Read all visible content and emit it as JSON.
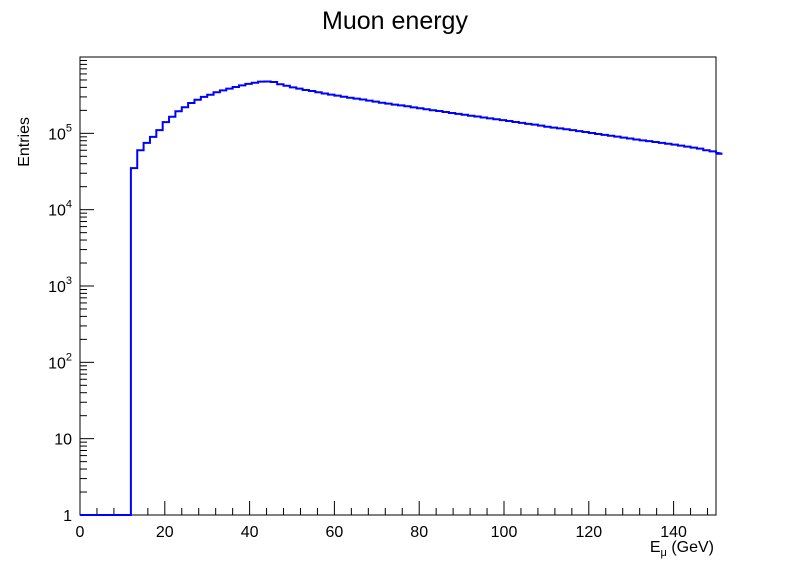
{
  "chart_data": {
    "type": "histogram",
    "title": "Muon energy",
    "xlabel": "E",
    "xlabel_subscript": "μ",
    "xlabel_unit": " (GeV)",
    "ylabel": "Entries",
    "xlim": [
      0,
      150
    ],
    "ylim": [
      1,
      1000000
    ],
    "y_scale": "log",
    "grid": false,
    "legend": "none",
    "line_color": "#0000ff",
    "x_ticks": [
      0,
      20,
      40,
      60,
      80,
      100,
      120,
      140
    ],
    "x_tick_labels": [
      "0",
      "20",
      "40",
      "60",
      "80",
      "100",
      "120",
      "140"
    ],
    "y_ticks": [
      1,
      10,
      100,
      1000,
      10000,
      100000
    ],
    "y_tick_labels": [
      {
        "base": "1",
        "exp": ""
      },
      {
        "base": "10",
        "exp": ""
      },
      {
        "base": "10",
        "exp": "2"
      },
      {
        "base": "10",
        "exp": "3"
      },
      {
        "base": "10",
        "exp": "4"
      },
      {
        "base": "10",
        "exp": "5"
      }
    ],
    "bin_width": 1.5,
    "bin_edges_start": 0,
    "values": [
      1,
      1,
      1,
      1,
      1,
      1,
      1,
      1,
      35000,
      60000,
      75000,
      90000,
      110000,
      140000,
      165000,
      195000,
      220000,
      250000,
      275000,
      300000,
      320000,
      345000,
      365000,
      385000,
      405000,
      425000,
      445000,
      460000,
      475000,
      478000,
      470000,
      440000,
      420000,
      400000,
      385000,
      370000,
      358000,
      345000,
      333000,
      322000,
      312000,
      302000,
      293000,
      285000,
      277000,
      268000,
      260000,
      252000,
      245000,
      238000,
      232000,
      226000,
      219000,
      213000,
      207000,
      201000,
      196000,
      190000,
      185000,
      180000,
      175000,
      170000,
      166000,
      161000,
      157000,
      153000,
      149000,
      145000,
      141000,
      137000,
      133000,
      130000,
      126000,
      122000,
      119000,
      116000,
      113000,
      110000,
      107000,
      104000,
      101000,
      98000,
      95500,
      93000,
      90500,
      88000,
      85500,
      83000,
      81000,
      79000,
      77000,
      75000,
      73000,
      71000,
      69000,
      67000,
      65000,
      63000,
      60000,
      58000,
      56000,
      54000
    ]
  }
}
